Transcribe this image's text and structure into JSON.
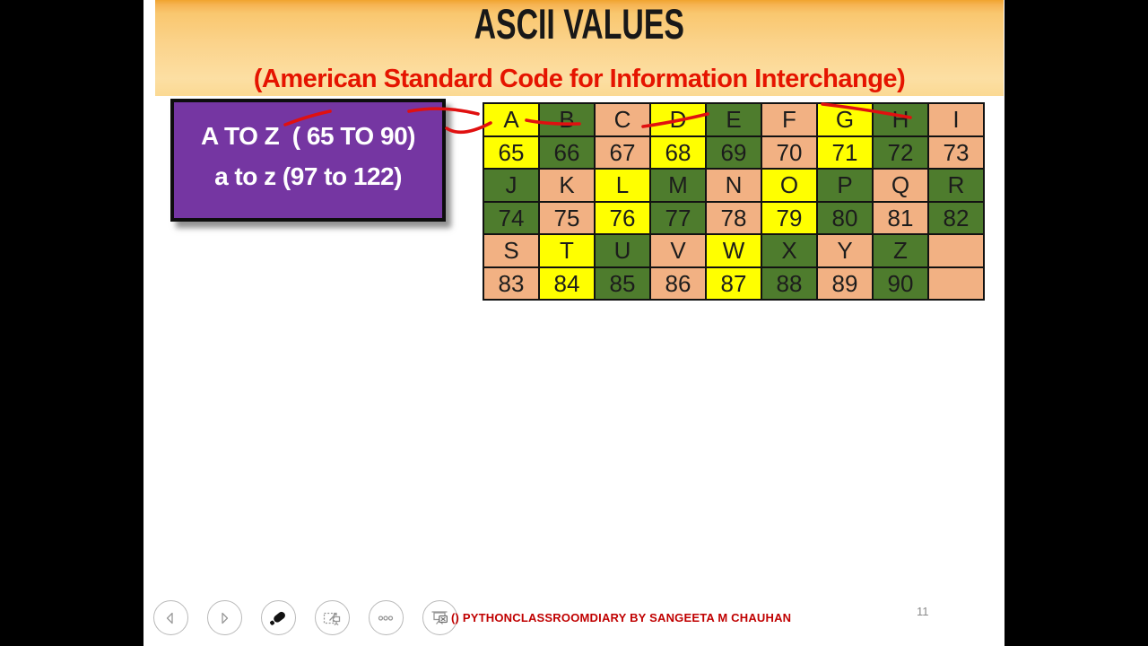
{
  "slide": {
    "header": {
      "title": "ASCII VALUES",
      "subtitle": "(American Standard Code for Information Interchange)"
    },
    "info_box": {
      "line1": "A TO Z  ( 65 TO 90)",
      "line2": "a to z (97 to 122)"
    },
    "ascii_table": {
      "rows": [
        [
          {
            "t": "A",
            "c": "yellow"
          },
          {
            "t": "B",
            "c": "green"
          },
          {
            "t": "C",
            "c": "peach"
          },
          {
            "t": "D",
            "c": "yellow"
          },
          {
            "t": "E",
            "c": "green"
          },
          {
            "t": "F",
            "c": "peach"
          },
          {
            "t": "G",
            "c": "yellow"
          },
          {
            "t": "H",
            "c": "green"
          },
          {
            "t": "I",
            "c": "peach"
          }
        ],
        [
          {
            "t": "65",
            "c": "yellow"
          },
          {
            "t": "66",
            "c": "green"
          },
          {
            "t": "67",
            "c": "peach"
          },
          {
            "t": "68",
            "c": "yellow"
          },
          {
            "t": "69",
            "c": "green"
          },
          {
            "t": "70",
            "c": "peach"
          },
          {
            "t": "71",
            "c": "yellow"
          },
          {
            "t": "72",
            "c": "green"
          },
          {
            "t": "73",
            "c": "peach"
          }
        ],
        [
          {
            "t": "J",
            "c": "green"
          },
          {
            "t": "K",
            "c": "peach"
          },
          {
            "t": "L",
            "c": "yellow"
          },
          {
            "t": "M",
            "c": "green"
          },
          {
            "t": "N",
            "c": "peach"
          },
          {
            "t": "O",
            "c": "yellow"
          },
          {
            "t": "P",
            "c": "green"
          },
          {
            "t": "Q",
            "c": "peach"
          },
          {
            "t": "R",
            "c": "green"
          }
        ],
        [
          {
            "t": "74",
            "c": "green"
          },
          {
            "t": "75",
            "c": "peach"
          },
          {
            "t": "76",
            "c": "yellow"
          },
          {
            "t": "77",
            "c": "green"
          },
          {
            "t": "78",
            "c": "peach"
          },
          {
            "t": "79",
            "c": "yellow"
          },
          {
            "t": "80",
            "c": "green"
          },
          {
            "t": "81",
            "c": "peach"
          },
          {
            "t": "82",
            "c": "green"
          }
        ],
        [
          {
            "t": "S",
            "c": "peach"
          },
          {
            "t": "T",
            "c": "yellow"
          },
          {
            "t": "U",
            "c": "green"
          },
          {
            "t": "V",
            "c": "peach"
          },
          {
            "t": "W",
            "c": "yellow"
          },
          {
            "t": "X",
            "c": "green"
          },
          {
            "t": "Y",
            "c": "peach"
          },
          {
            "t": "Z",
            "c": "green"
          },
          {
            "t": "",
            "c": "peach"
          }
        ],
        [
          {
            "t": "83",
            "c": "peach"
          },
          {
            "t": "84",
            "c": "yellow"
          },
          {
            "t": "85",
            "c": "green"
          },
          {
            "t": "86",
            "c": "peach"
          },
          {
            "t": "87",
            "c": "yellow"
          },
          {
            "t": "88",
            "c": "green"
          },
          {
            "t": "89",
            "c": "peach"
          },
          {
            "t": "90",
            "c": "green"
          },
          {
            "t": "",
            "c": "peach"
          }
        ]
      ]
    },
    "toolbar": {
      "buttons": [
        {
          "icon": "prev-arrow-icon"
        },
        {
          "icon": "next-arrow-icon"
        },
        {
          "icon": "eraser-pen-icon"
        },
        {
          "icon": "zoom-slide-icon"
        },
        {
          "icon": "ellipsis-icon"
        },
        {
          "icon": "end-slideshow-icon"
        }
      ]
    },
    "footer": {
      "credit": "() PYTHONCLASSROOMDIARY BY SANGEETA M CHAUHAN",
      "page_number": "11"
    },
    "colors": {
      "yellow": "#ffff00",
      "green": "#4e7c2d",
      "peach": "#f2b183",
      "purple": "#7536a2",
      "pen-red": "#e01010",
      "subtitle-red": "#e51400",
      "footer-red": "#c00000"
    }
  }
}
